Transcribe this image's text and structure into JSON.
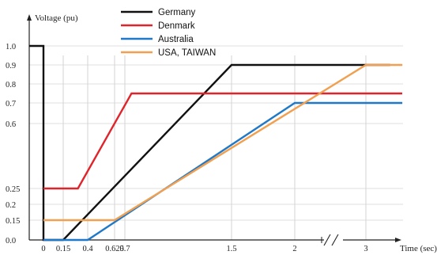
{
  "chart_data": {
    "type": "line",
    "xlabel": "Time (sec)",
    "ylabel": "Voltage (pu)",
    "xlim": [
      -0.25,
      3.6
    ],
    "ylim": [
      0.0,
      1.0
    ],
    "x_ticks": [
      {
        "value": 0,
        "label": "0"
      },
      {
        "value": 0.15,
        "label": "0.15"
      },
      {
        "value": 0.4,
        "label": "0.4"
      },
      {
        "value": 0.625,
        "label": "0.625"
      },
      {
        "value": 0.7,
        "label": "0.7"
      },
      {
        "value": 1.5,
        "label": "1.5"
      },
      {
        "value": 2,
        "label": "2"
      },
      {
        "value": 3,
        "label": "3"
      }
    ],
    "y_ticks": [
      {
        "value": 0.0,
        "label": "0.0"
      },
      {
        "value": 0.15,
        "label": "0.15"
      },
      {
        "value": 0.2,
        "label": "0.2"
      },
      {
        "value": 0.25,
        "label": "0.25"
      },
      {
        "value": 0.6,
        "label": "0.6"
      },
      {
        "value": 0.7,
        "label": "0.7"
      },
      {
        "value": 0.8,
        "label": "0.8"
      },
      {
        "value": 0.9,
        "label": "0.9"
      },
      {
        "value": 1.0,
        "label": "1.0"
      }
    ],
    "axis_break_between": [
      2,
      3
    ],
    "legend_position": "top-center",
    "series": [
      {
        "name": "Germany",
        "color": "#111111",
        "points": [
          [
            -0.25,
            1.0
          ],
          [
            0,
            1.0
          ],
          [
            0,
            0.0
          ],
          [
            0.15,
            0.0
          ],
          [
            1.5,
            0.9
          ],
          [
            3.4,
            0.9
          ]
        ]
      },
      {
        "name": "Denmark",
        "color": "#e0242b",
        "points": [
          [
            0,
            0.25
          ],
          [
            0.3,
            0.25
          ],
          [
            0.75,
            0.75
          ],
          [
            3.6,
            0.75
          ]
        ]
      },
      {
        "name": "Australia",
        "color": "#1f78c8",
        "points": [
          [
            0,
            0.0
          ],
          [
            0.4,
            0.0
          ],
          [
            2.0,
            0.7
          ],
          [
            3.6,
            0.7
          ]
        ]
      },
      {
        "name": "USA, TAIWAN",
        "color": "#f0a050",
        "points": [
          [
            0,
            0.15
          ],
          [
            0.625,
            0.15
          ],
          [
            3.0,
            0.9
          ],
          [
            3.6,
            0.9
          ]
        ]
      }
    ]
  }
}
